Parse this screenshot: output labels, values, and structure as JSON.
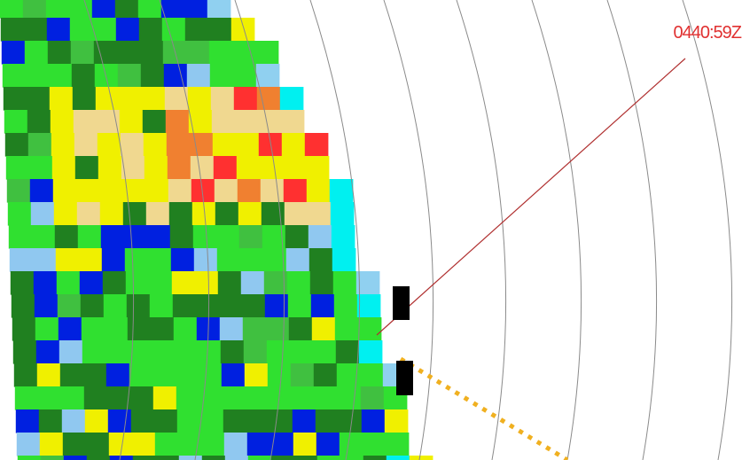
{
  "timestamp": "0440:59Z"
}
